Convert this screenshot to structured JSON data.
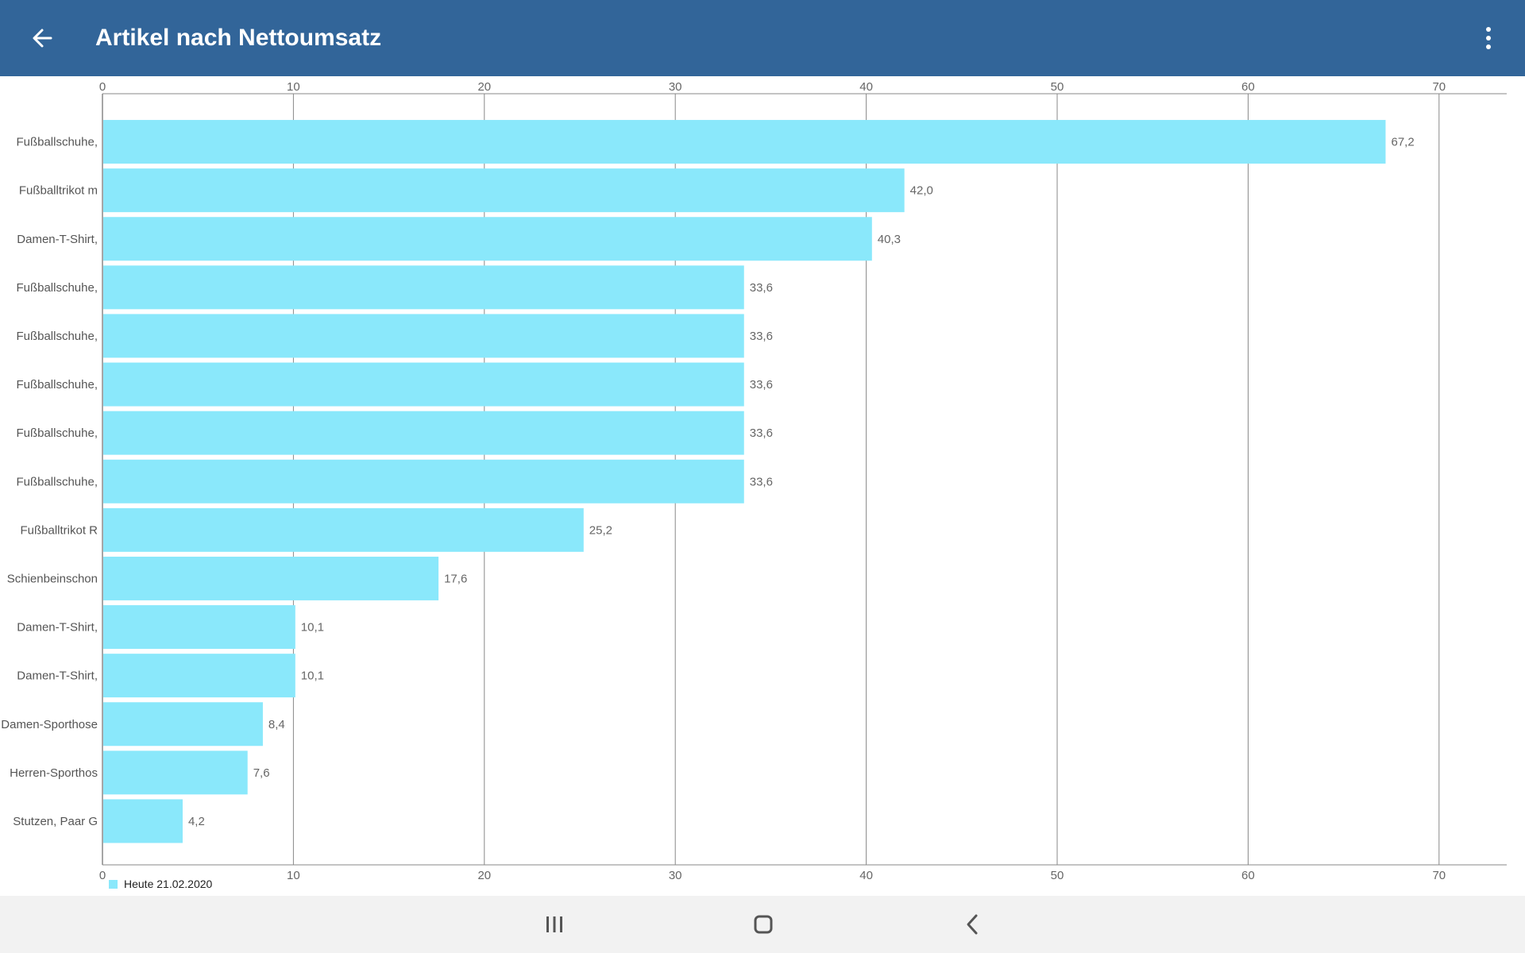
{
  "header": {
    "title": "Artikel nach Nettoumsatz",
    "background": "#326599",
    "back_icon": "arrow-left-icon",
    "menu_icon": "more-vertical-icon"
  },
  "chart_data": {
    "type": "bar",
    "orientation": "horizontal",
    "categories": [
      "Fußballschuhe,",
      "Fußballtrikot m",
      "Damen-T-Shirt,",
      "Fußballschuhe,",
      "Fußballschuhe,",
      "Fußballschuhe,",
      "Fußballschuhe,",
      "Fußballschuhe,",
      "Fußballtrikot R",
      "Schienbeinschon",
      "Damen-T-Shirt,",
      "Damen-T-Shirt,",
      "Damen-Sporthose",
      "Herren-Sporthos",
      "Stutzen, Paar G"
    ],
    "series": [
      {
        "name": "Heute 21.02.2020",
        "color": "#8ae8fb",
        "values": [
          67.2,
          42.0,
          40.3,
          33.6,
          33.6,
          33.6,
          33.6,
          33.6,
          25.2,
          17.6,
          10.1,
          10.1,
          8.4,
          7.6,
          4.2
        ],
        "labels": [
          "67,2",
          "42,0",
          "40,3",
          "33,6",
          "33,6",
          "33,6",
          "33,6",
          "33,6",
          "25,2",
          "17,6",
          "10,1",
          "10,1",
          "8,4",
          "7,6",
          "4,2"
        ]
      }
    ],
    "x_ticks": [
      "0",
      "10",
      "20",
      "30",
      "40",
      "50",
      "60",
      "70"
    ],
    "xlim": [
      0,
      73.5
    ],
    "grid": true,
    "axis_position": "top-and-bottom",
    "legend_position": "bottom-left"
  },
  "nav": {
    "recents_icon": "recent-apps-icon",
    "home_icon": "home-icon",
    "back_icon": "back-chevron-icon"
  }
}
